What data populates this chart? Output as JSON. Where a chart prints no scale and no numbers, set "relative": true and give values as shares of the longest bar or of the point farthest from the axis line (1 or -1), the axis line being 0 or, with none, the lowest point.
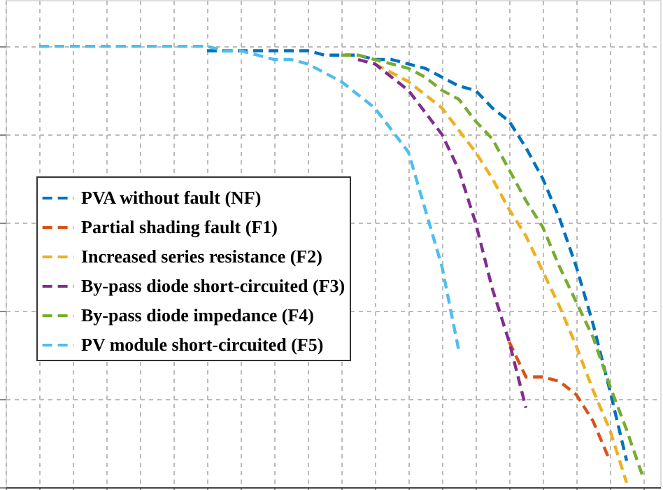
{
  "chart_data": {
    "type": "line",
    "relative": true,
    "grid": true,
    "tick_labels": false,
    "legend": "left",
    "categories": [
      null,
      null,
      null,
      null,
      null,
      null,
      null,
      null,
      null,
      null,
      null,
      null,
      null,
      null,
      null,
      null,
      null,
      null,
      null,
      null,
      null,
      null,
      null,
      null,
      null,
      null,
      null,
      null,
      null,
      null,
      null,
      null,
      null,
      null,
      null,
      null,
      null,
      null,
      null,
      null
    ],
    "series": [
      {
        "name": "PVA without fault (NF)",
        "color": "#0072bd",
        "line_style": "dashed",
        "values": [
          null,
          null,
          null,
          null,
          null,
          null,
          null,
          null,
          null,
          null,
          null,
          null,
          0.99,
          0.99,
          0.99,
          0.99,
          0.99,
          0.99,
          0.99,
          0.98,
          0.98,
          0.98,
          0.97,
          0.97,
          0.96,
          0.95,
          0.93,
          0.91,
          0.9,
          0.86,
          0.83,
          0.77,
          0.7,
          0.61,
          0.5,
          0.37,
          0.22,
          0.06,
          null,
          null
        ]
      },
      {
        "name": "Partial shading fault (F1)",
        "color": "#d95319",
        "line_style": "dashed",
        "values": [
          null,
          null,
          null,
          null,
          null,
          null,
          null,
          null,
          null,
          null,
          null,
          null,
          null,
          null,
          null,
          null,
          null,
          null,
          null,
          null,
          null,
          null,
          null,
          null,
          null,
          null,
          null,
          null,
          null,
          null,
          0.33,
          0.25,
          0.25,
          0.24,
          0.21,
          0.15,
          0.06,
          null,
          null,
          null
        ]
      },
      {
        "name": "Increased series resistance (F2)",
        "color": "#edb120",
        "line_style": "dashed",
        "values": [
          null,
          null,
          null,
          null,
          null,
          null,
          null,
          null,
          null,
          null,
          null,
          null,
          null,
          null,
          null,
          null,
          null,
          null,
          null,
          null,
          null,
          null,
          0.96,
          0.94,
          0.92,
          0.89,
          0.86,
          0.81,
          0.76,
          0.7,
          0.63,
          0.57,
          0.49,
          0.41,
          0.32,
          0.22,
          0.13,
          0.01,
          null,
          null
        ]
      },
      {
        "name": "By-pass diode short-circuited (F3)",
        "color": "#7e2f8e",
        "line_style": "dashed",
        "values": [
          null,
          null,
          null,
          null,
          null,
          null,
          null,
          null,
          null,
          null,
          null,
          null,
          null,
          null,
          null,
          null,
          null,
          null,
          null,
          null,
          null,
          0.97,
          0.96,
          0.93,
          0.9,
          0.85,
          0.8,
          0.72,
          0.6,
          0.45,
          0.33,
          0.18,
          null,
          null,
          null,
          null,
          null,
          null,
          null,
          null
        ]
      },
      {
        "name": "By-pass diode impedance (F4)",
        "color": "#77ac30",
        "line_style": "dashed",
        "values": [
          null,
          null,
          null,
          null,
          null,
          null,
          null,
          null,
          null,
          null,
          null,
          null,
          null,
          null,
          null,
          null,
          null,
          null,
          null,
          null,
          0.98,
          0.98,
          0.97,
          0.96,
          0.95,
          0.93,
          0.9,
          0.88,
          0.83,
          0.79,
          0.72,
          0.65,
          0.59,
          0.5,
          0.42,
          0.34,
          0.23,
          0.13,
          0.02,
          null
        ]
      },
      {
        "name": "PV module short-circuited (F5)",
        "color": "#4dbeee",
        "line_style": "dashed",
        "values": [
          null,
          null,
          1.0,
          1.0,
          1.0,
          1.0,
          1.0,
          1.0,
          1.0,
          1.0,
          1.0,
          1.0,
          1.0,
          0.99,
          0.99,
          0.98,
          0.97,
          0.97,
          0.96,
          0.94,
          0.92,
          0.89,
          0.86,
          0.81,
          0.76,
          0.63,
          0.5,
          0.31,
          null,
          null,
          null,
          null,
          null,
          null,
          null,
          null,
          null,
          null,
          null,
          null
        ]
      }
    ]
  }
}
